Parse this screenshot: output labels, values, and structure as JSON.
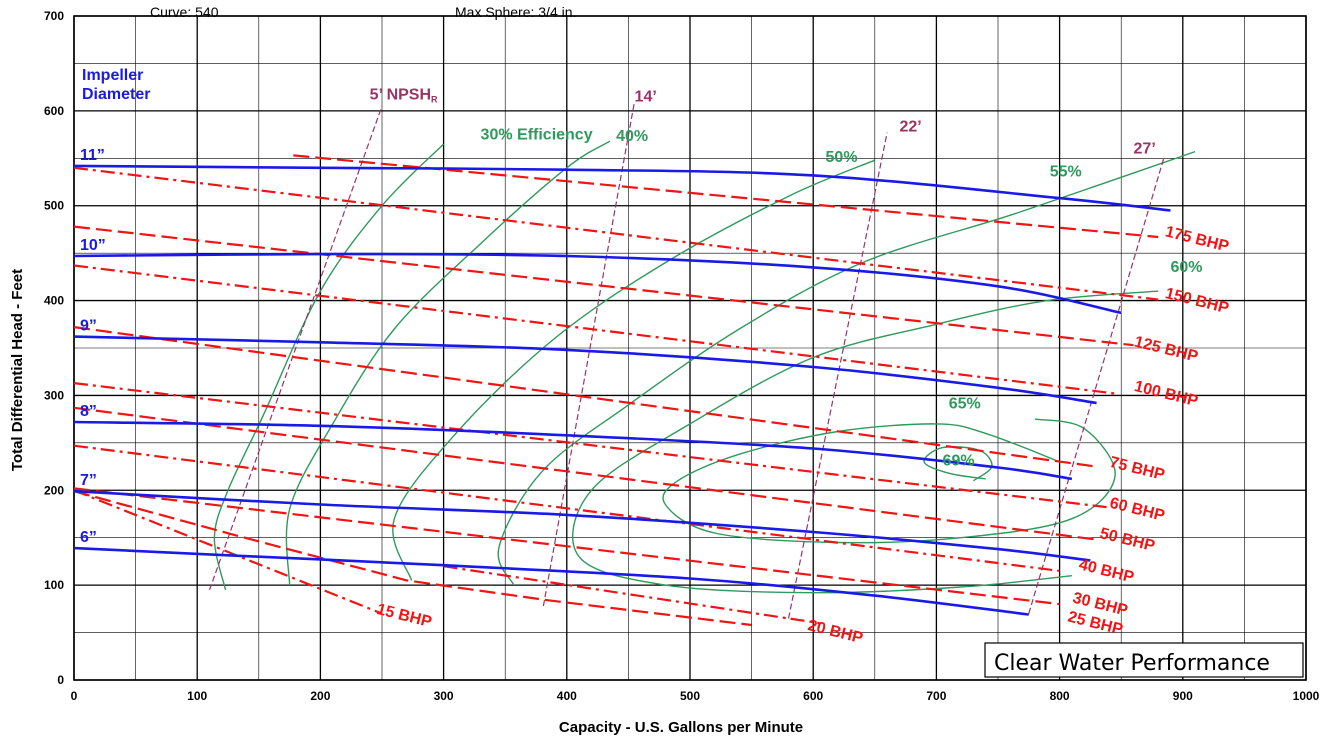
{
  "header": {
    "curve": "Curve: 540",
    "max_sphere": "Max Sphere: 3/4 in."
  },
  "chart_data": {
    "type": "line",
    "title": "",
    "subtitle": "Clear Water Performance",
    "xlabel": "Capacity - U.S. Gallons per Minute",
    "ylabel": "Total Differential Head - Feet",
    "xlim": [
      0,
      1000
    ],
    "ylim": [
      0,
      700
    ],
    "x_ticks": [
      "0",
      "100",
      "200",
      "300",
      "400",
      "500",
      "600",
      "700",
      "800",
      "900",
      "1000"
    ],
    "y_ticks": [
      "0",
      "100",
      "200",
      "300",
      "400",
      "500",
      "600",
      "700"
    ],
    "grid": true,
    "colors": {
      "impeller": "#1a1ae6",
      "bhp": "#f01414",
      "efficiency": "#2e9a5c",
      "npsh": "#9a3366"
    },
    "impeller_title": [
      "Impeller",
      "Diameter"
    ],
    "impeller_curves": [
      {
        "name": "11”",
        "points": [
          [
            0,
            542
          ],
          [
            200,
            540
          ],
          [
            400,
            538
          ],
          [
            600,
            532
          ],
          [
            800,
            508
          ],
          [
            890,
            495
          ]
        ]
      },
      {
        "name": "10”",
        "points": [
          [
            0,
            447
          ],
          [
            200,
            449
          ],
          [
            400,
            447
          ],
          [
            600,
            435
          ],
          [
            750,
            415
          ],
          [
            850,
            387
          ]
        ]
      },
      {
        "name": "9”",
        "points": [
          [
            0,
            362
          ],
          [
            200,
            356
          ],
          [
            400,
            348
          ],
          [
            600,
            330
          ],
          [
            750,
            308
          ],
          [
            830,
            292
          ]
        ]
      },
      {
        "name": "8”",
        "points": [
          [
            0,
            272
          ],
          [
            200,
            268
          ],
          [
            400,
            258
          ],
          [
            600,
            244
          ],
          [
            750,
            224
          ],
          [
            810,
            212
          ]
        ]
      },
      {
        "name": "7”",
        "points": [
          [
            0,
            199
          ],
          [
            200,
            185
          ],
          [
            400,
            174
          ],
          [
            600,
            156
          ],
          [
            750,
            138
          ],
          [
            825,
            126
          ]
        ]
      },
      {
        "name": "6”",
        "points": [
          [
            0,
            139
          ],
          [
            150,
            130
          ],
          [
            300,
            121
          ],
          [
            500,
            107
          ],
          [
            650,
            89
          ],
          [
            775,
            69
          ]
        ]
      }
    ],
    "bhp_lines": [
      {
        "name": "175 BHP",
        "points": [
          [
            178,
            553
          ],
          [
            880,
            467
          ]
        ]
      },
      {
        "name": "150 BHP",
        "points": [
          [
            0,
            540
          ],
          [
            880,
            401
          ]
        ]
      },
      {
        "name": "125 BHP",
        "points": [
          [
            0,
            478
          ],
          [
            860,
            353
          ]
        ]
      },
      {
        "name": "100 BHP",
        "points": [
          [
            0,
            437
          ],
          [
            845,
            302
          ]
        ]
      },
      {
        "name": "75 BHP",
        "points": [
          [
            0,
            372
          ],
          [
            830,
            225
          ]
        ]
      },
      {
        "name": "60 BHP",
        "points": [
          [
            0,
            313
          ],
          [
            840,
            182
          ]
        ]
      },
      {
        "name": "50 BHP",
        "points": [
          [
            0,
            287
          ],
          [
            830,
            148
          ]
        ]
      },
      {
        "name": "40 BHP",
        "points": [
          [
            0,
            247
          ],
          [
            800,
            115
          ]
        ]
      },
      {
        "name": "30 BHP",
        "points": [
          [
            0,
            202
          ],
          [
            800,
            80
          ]
        ]
      },
      {
        "name": "25 BHP",
        "points": [
          [
            0,
            199
          ],
          [
            130,
            153
          ],
          [
            270,
            105
          ],
          [
            385,
            84
          ],
          [
            550,
            58
          ]
        ]
      },
      {
        "name": "20 BHP",
        "points": [
          [
            300,
            120
          ],
          [
            605,
            60
          ]
        ]
      },
      {
        "name": "15 BHP",
        "points": [
          [
            0,
            200
          ],
          [
            250,
            70
          ]
        ]
      }
    ],
    "efficiency_curves": [
      {
        "name": "30% Efficiency",
        "points": [
          [
            123,
            95
          ],
          [
            114,
            150
          ],
          [
            125,
            200
          ],
          [
            154,
            280
          ],
          [
            200,
            410
          ],
          [
            250,
            500
          ],
          [
            300,
            565
          ]
        ]
      },
      {
        "name": "40%",
        "points": [
          [
            175,
            100
          ],
          [
            175,
            180
          ],
          [
            210,
            270
          ],
          [
            260,
            370
          ],
          [
            330,
            460
          ],
          [
            400,
            540
          ],
          [
            435,
            568
          ]
        ]
      },
      {
        "name": "50%",
        "points": [
          [
            274,
            105
          ],
          [
            260,
            170
          ],
          [
            310,
            260
          ],
          [
            390,
            360
          ],
          [
            480,
            440
          ],
          [
            580,
            510
          ],
          [
            650,
            548
          ]
        ]
      },
      {
        "name": "55%",
        "points": [
          [
            357,
            100
          ],
          [
            345,
            140
          ],
          [
            380,
            220
          ],
          [
            450,
            290
          ],
          [
            540,
            370
          ],
          [
            640,
            440
          ],
          [
            760,
            490
          ],
          [
            850,
            530
          ],
          [
            910,
            557
          ]
        ]
      },
      {
        "name": "60%",
        "points": [
          [
            880,
            410
          ],
          [
            790,
            400
          ],
          [
            700,
            375
          ],
          [
            600,
            340
          ],
          [
            500,
            270
          ],
          [
            420,
            200
          ],
          [
            410,
            130
          ],
          [
            480,
            100
          ],
          [
            600,
            92
          ],
          [
            720,
            98
          ],
          [
            810,
            110
          ]
        ]
      },
      {
        "name": "65%",
        "points": [
          [
            800,
            230
          ],
          [
            740,
            260
          ],
          [
            700,
            270
          ],
          [
            620,
            262
          ],
          [
            540,
            238
          ],
          [
            490,
            210
          ],
          [
            480,
            185
          ],
          [
            520,
            155
          ],
          [
            620,
            145
          ],
          [
            720,
            150
          ],
          [
            810,
            170
          ],
          [
            845,
            215
          ],
          [
            820,
            265
          ],
          [
            780,
            275
          ]
        ]
      },
      {
        "name": "69%",
        "points": [
          [
            740,
            212
          ],
          [
            710,
            218
          ],
          [
            690,
            230
          ],
          [
            705,
            245
          ],
          [
            735,
            242
          ],
          [
            745,
            225
          ],
          [
            730,
            210
          ]
        ]
      }
    ],
    "npsh_lines": [
      {
        "name": "5’ NPSH",
        "subscript": "R",
        "points": [
          [
            110,
            95
          ],
          [
            250,
            605
          ]
        ]
      },
      {
        "name": "14’",
        "points": [
          [
            381,
            78
          ],
          [
            455,
            610
          ]
        ]
      },
      {
        "name": "22’",
        "points": [
          [
            580,
            65
          ],
          [
            660,
            577
          ]
        ]
      },
      {
        "name": "27’",
        "points": [
          [
            775,
            70
          ],
          [
            885,
            552
          ]
        ]
      }
    ]
  }
}
